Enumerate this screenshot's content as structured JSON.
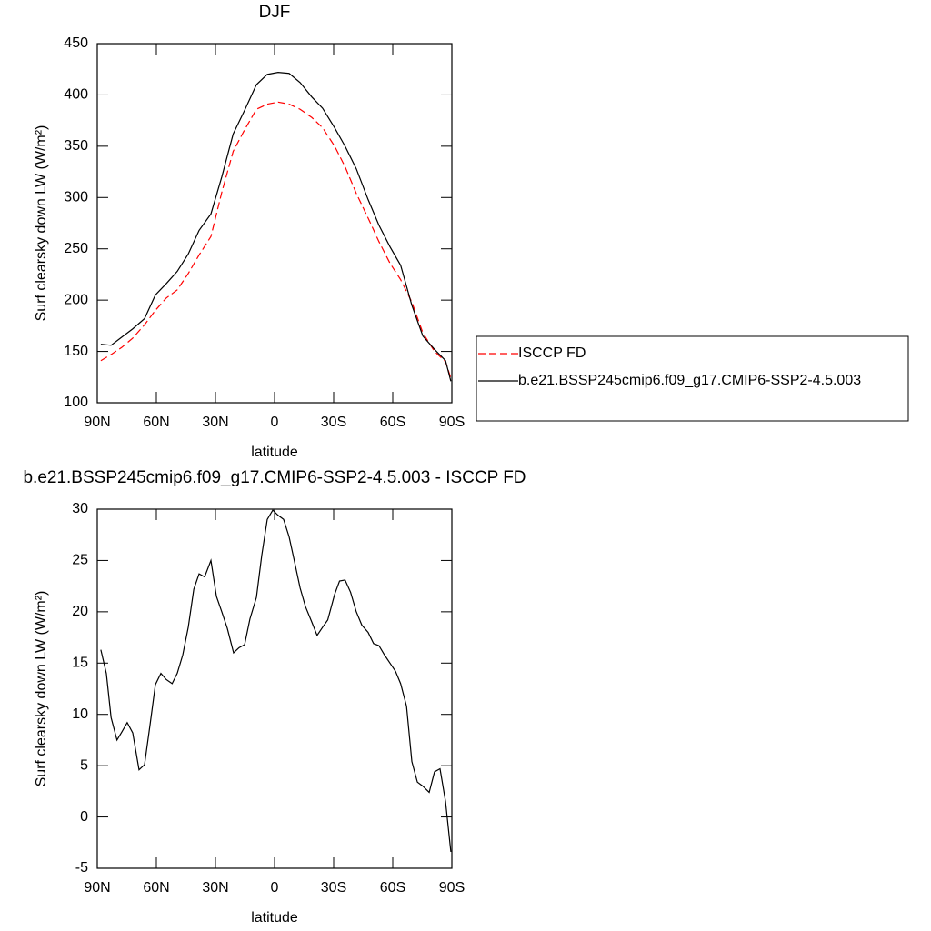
{
  "chart_data": [
    {
      "type": "line",
      "title": "DJF",
      "xlabel": "latitude",
      "ylabel": "Surf clearsky down LW (W/m²)",
      "x": [
        88.2,
        83,
        77.5,
        72,
        66,
        60.5,
        55,
        49.4,
        43.8,
        38.3,
        32.3,
        26.8,
        21,
        15.2,
        9.2,
        3.7,
        -1.8,
        -7.4,
        -13,
        -18.9,
        -24.4,
        -30.5,
        -35.8,
        -41.5,
        -47.5,
        -53,
        -58.6,
        -64,
        -69.7,
        -75.3,
        -81.2,
        -86.8,
        -89.5
      ],
      "series": [
        {
          "name": "ISCCP FD",
          "color": "#ff0000",
          "line_style": "dashed",
          "values": [
            141,
            147,
            154,
            163,
            176,
            190,
            202,
            210,
            226,
            244,
            262,
            305,
            345,
            366,
            386,
            391,
            393,
            391,
            386,
            378,
            368,
            350,
            330,
            304,
            280,
            257,
            236,
            220,
            198,
            168,
            150,
            140,
            124
          ]
        },
        {
          "name": "b.e21.BSSP245cmip6.f09_g17.CMIP6-SSP2-4.5.003",
          "color": "#000000",
          "line_style": "solid",
          "values": [
            157,
            156,
            164,
            172,
            182,
            205,
            216,
            228,
            245,
            268,
            284,
            320,
            362,
            385,
            410,
            420,
            422,
            421,
            412,
            398,
            387,
            368,
            350,
            328,
            298,
            273,
            252,
            234,
            195,
            165,
            152,
            141,
            121
          ]
        }
      ],
      "xlim": [
        90,
        -90
      ],
      "xticks": [
        {
          "value": 90,
          "label": "90N"
        },
        {
          "value": 60,
          "label": "60N"
        },
        {
          "value": 30,
          "label": "30N"
        },
        0,
        {
          "value": -30,
          "label": "30S"
        },
        {
          "value": -60,
          "label": "60S"
        },
        {
          "value": -90,
          "label": "90S"
        }
      ],
      "ylim": [
        100,
        450
      ],
      "yticks": [
        100,
        150,
        200,
        250,
        300,
        350,
        400,
        450
      ],
      "legend": "right"
    },
    {
      "type": "line",
      "title": "b.e21.BSSP245cmip6.f09_g17.CMIP6-SSP2-4.5.003 - ISCCP FD",
      "xlabel": "latitude",
      "ylabel": "Surf clearsky down LW (W/m²)",
      "x": [
        88.2,
        85.4,
        83,
        80,
        77.5,
        74.8,
        72,
        68.8,
        66,
        63.2,
        60.5,
        57.7,
        55,
        52,
        49.4,
        46.6,
        43.8,
        41,
        38.3,
        35.5,
        32.3,
        29.5,
        26.8,
        24,
        20.8,
        18,
        15.2,
        12.5,
        9.2,
        6.5,
        3.7,
        0.9,
        -1.8,
        -4.6,
        -7.4,
        -10,
        -13,
        -15.7,
        -18.9,
        -21.6,
        -24.4,
        -27,
        -30.5,
        -33,
        -35.8,
        -38.6,
        -41.5,
        -44.3,
        -47.5,
        -50.3,
        -53,
        -55.8,
        -58.6,
        -61.4,
        -64,
        -67,
        -69.7,
        -72.5,
        -75.3,
        -78.5,
        -81.2,
        -84,
        -86.8,
        -89.5
      ],
      "series": [
        {
          "color": "#000000",
          "line_style": "solid",
          "values": [
            16.3,
            14,
            9.7,
            7.5,
            8.3,
            9.2,
            8.2,
            4.6,
            5.1,
            9,
            12.9,
            14,
            13.4,
            13,
            14,
            15.8,
            18.5,
            22.2,
            23.7,
            23.4,
            25,
            21.5,
            20,
            18.4,
            16,
            16.5,
            16.8,
            19.3,
            21.4,
            25.5,
            29,
            29.9,
            29.4,
            29,
            27.3,
            25,
            22.3,
            20.5,
            19,
            17.7,
            18.5,
            19.2,
            21.7,
            23,
            23.1,
            21.9,
            20,
            18.7,
            18,
            16.9,
            16.7,
            15.8,
            15,
            14.2,
            13,
            10.8,
            5.4,
            3.4,
            3,
            2.4,
            4.4,
            4.7,
            1.5,
            -3.4
          ]
        }
      ],
      "xlim": [
        90,
        -90
      ],
      "xticks": [
        {
          "value": 90,
          "label": "90N"
        },
        {
          "value": 60,
          "label": "60N"
        },
        {
          "value": 30,
          "label": "30N"
        },
        0,
        {
          "value": -30,
          "label": "30S"
        },
        {
          "value": -60,
          "label": "60S"
        },
        {
          "value": -90,
          "label": "90S"
        }
      ],
      "ylim": [
        -5,
        30
      ],
      "yticks": [
        -5,
        0,
        5,
        10,
        15,
        20,
        25,
        30
      ]
    }
  ]
}
